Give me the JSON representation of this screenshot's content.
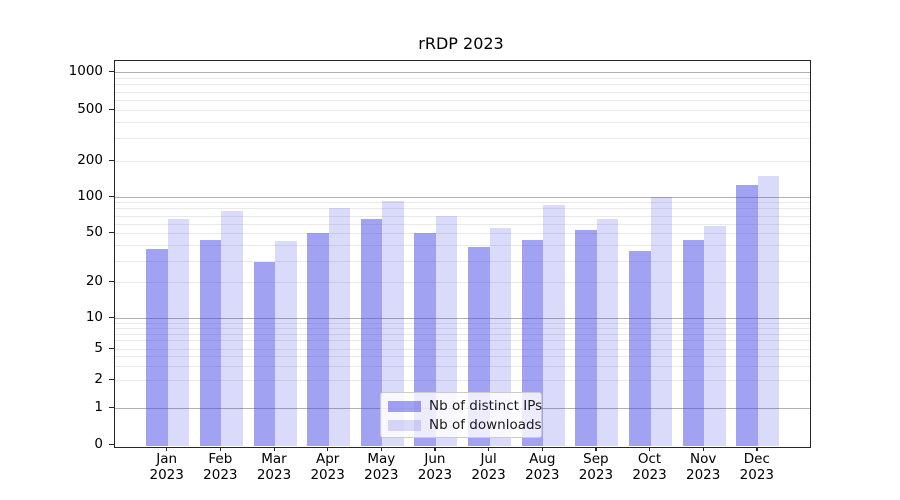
{
  "title": "rRDP 2023",
  "colors": {
    "bar_distinct_ips": "rgba(70,70,230,0.5)",
    "bar_downloads": "rgba(70,70,230,0.2)",
    "bar_distinct_ips_hex": "#a3a3f2",
    "bar_downloads_hex": "#dadaf8",
    "grid_major": "#b0b0b0",
    "grid_minor": "#e9e9e9",
    "axis": "#262626",
    "legend_border": "#cccccc"
  },
  "chart_data": {
    "type": "bar",
    "title": "rRDP 2023",
    "categories": [
      "Jan 2023",
      "Feb 2023",
      "Mar 2023",
      "Apr 2023",
      "May 2023",
      "Jun 2023",
      "Jul 2023",
      "Aug 2023",
      "Sep 2023",
      "Oct 2023",
      "Nov 2023",
      "Dec 2023"
    ],
    "series": [
      {
        "name": "Nb of distinct IPs",
        "color": "rgba(70,70,230,0.5)",
        "values": [
          37,
          44,
          29,
          50,
          65,
          50,
          39,
          44,
          53,
          36,
          44,
          125
        ]
      },
      {
        "name": "Nb of downloads",
        "color": "rgba(70,70,230,0.2)",
        "values": [
          65,
          77,
          43,
          80,
          92,
          70,
          55,
          85,
          65,
          100,
          57,
          150
        ]
      }
    ],
    "xlabel": "",
    "ylabel": "",
    "yscale": "symlog",
    "ylim": [
      0,
      1000
    ],
    "y_tick_labels": [
      0,
      1,
      2,
      5,
      10,
      20,
      50,
      100,
      200,
      500,
      1000
    ],
    "grid": true,
    "legend_position": "lower center"
  }
}
